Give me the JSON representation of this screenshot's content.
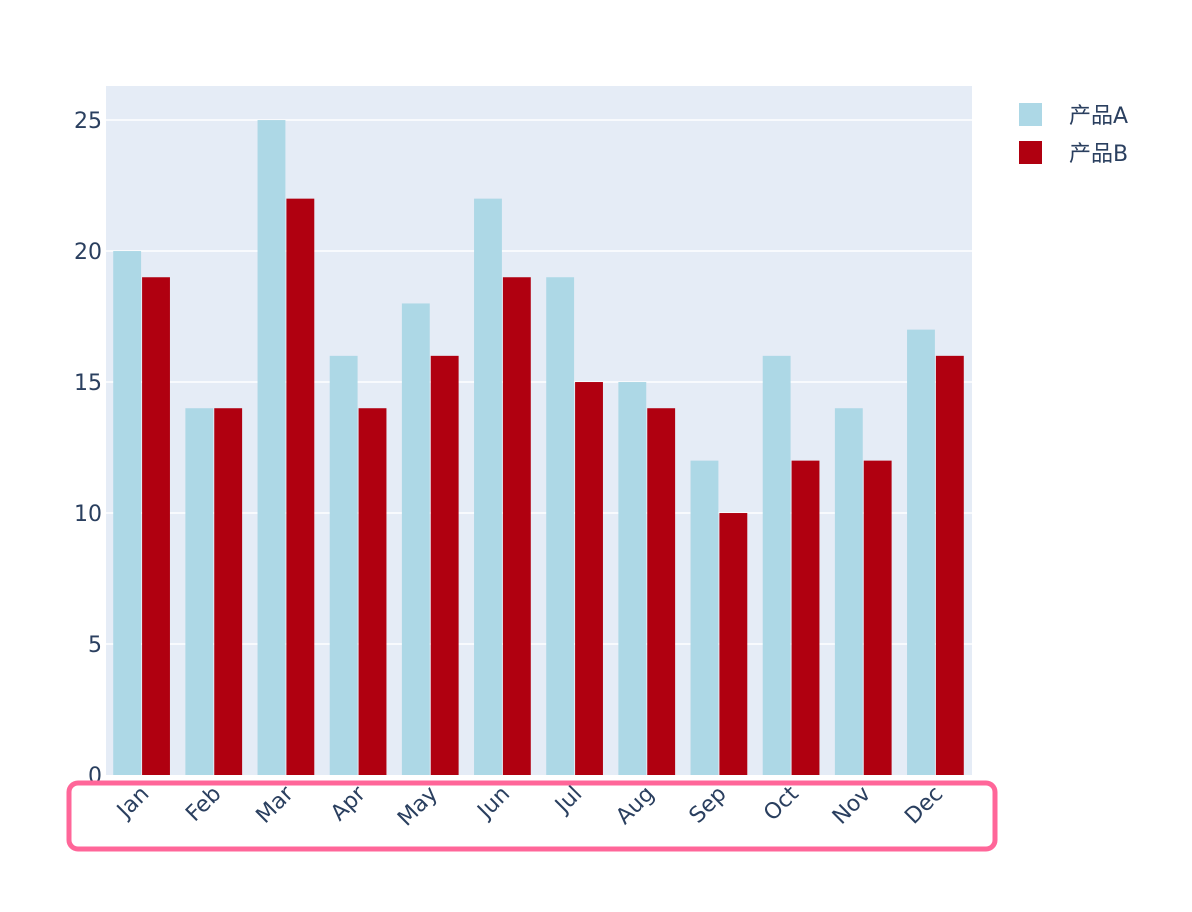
{
  "chart_data": {
    "type": "bar",
    "barmode": "group",
    "categories": [
      "Jan",
      "Feb",
      "Mar",
      "Apr",
      "May",
      "Jun",
      "Jul",
      "Aug",
      "Sep",
      "Oct",
      "Nov",
      "Dec"
    ],
    "series": [
      {
        "name": "产品A",
        "color": "#add8e6",
        "values": [
          20,
          14,
          25,
          16,
          18,
          22,
          19,
          15,
          12,
          16,
          14,
          17
        ]
      },
      {
        "name": "产品B",
        "color": "#b00010",
        "values": [
          19,
          14,
          22,
          14,
          16,
          19,
          15,
          14,
          10,
          12,
          12,
          16
        ]
      }
    ],
    "ylim": [
      0,
      26.3
    ],
    "yticks": [
      0,
      5,
      10,
      15,
      20,
      25
    ],
    "grid": true,
    "plot_background": "#e5ecf6",
    "legend_position": "top-right",
    "x_tick_label_angle": -45,
    "highlight": {
      "target": "x-axis-tick-labels",
      "color": "#ff6699"
    }
  }
}
